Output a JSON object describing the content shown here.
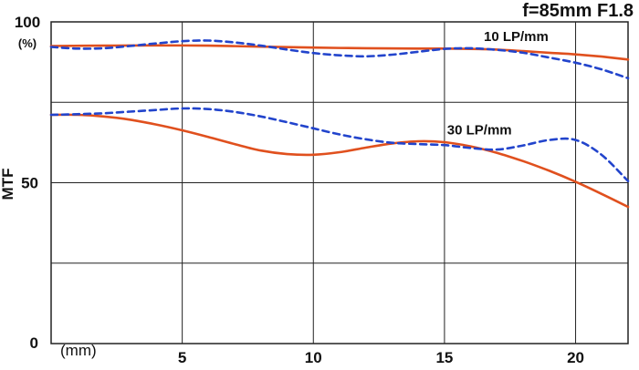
{
  "chart_data": {
    "type": "line",
    "title": "f=85mm F1.8",
    "xlabel": "(mm)",
    "ylabel": "MTF",
    "y_unit": "(%)",
    "xlim": [
      0,
      22
    ],
    "ylim": [
      0,
      100
    ],
    "x_ticks": [
      5,
      10,
      15,
      20
    ],
    "y_ticks": [
      0,
      50,
      100
    ],
    "grid": true,
    "colors": {
      "sagittal": "#e0501e",
      "meridional": "#2244cc"
    },
    "annotations": [
      {
        "text": "10 LP/mm",
        "x": 16.5,
        "y": 94
      },
      {
        "text": "30 LP/mm",
        "x": 15.1,
        "y": 65
      }
    ],
    "series": [
      {
        "group": "10 LP/mm",
        "style": "solid",
        "color": "#e0501e",
        "points": [
          [
            0,
            92.5
          ],
          [
            2,
            92.6
          ],
          [
            4,
            92.7
          ],
          [
            6,
            92.6
          ],
          [
            8,
            92.3
          ],
          [
            10,
            92
          ],
          [
            12,
            91.8
          ],
          [
            14,
            91.7
          ],
          [
            15,
            91.7
          ],
          [
            16,
            91.6
          ],
          [
            17,
            91.4
          ],
          [
            18,
            90.9
          ],
          [
            19,
            90.4
          ],
          [
            20,
            89.9
          ],
          [
            21,
            89.2
          ],
          [
            22,
            88.3
          ]
        ]
      },
      {
        "group": "10 LP/mm",
        "style": "dashed",
        "color": "#2244cc",
        "points": [
          [
            0,
            92.2
          ],
          [
            1,
            91.7
          ],
          [
            2,
            91.8
          ],
          [
            3,
            92.5
          ],
          [
            4,
            93.3
          ],
          [
            5,
            94
          ],
          [
            6,
            94.2
          ],
          [
            7,
            93.6
          ],
          [
            8,
            92.6
          ],
          [
            9,
            91.4
          ],
          [
            10,
            90.3
          ],
          [
            11,
            89.6
          ],
          [
            12,
            89.3
          ],
          [
            13,
            89.8
          ],
          [
            14,
            90.7
          ],
          [
            15,
            91.6
          ],
          [
            16,
            91.8
          ],
          [
            17,
            91.3
          ],
          [
            18,
            90.4
          ],
          [
            19,
            88.9
          ],
          [
            20,
            87.3
          ],
          [
            21,
            85.2
          ],
          [
            22,
            82.5
          ]
        ]
      },
      {
        "group": "30 LP/mm",
        "style": "solid",
        "color": "#e0501e",
        "points": [
          [
            0,
            71.1
          ],
          [
            1,
            71.1
          ],
          [
            2,
            70.6
          ],
          [
            3,
            69.6
          ],
          [
            4,
            68.1
          ],
          [
            5,
            66.3
          ],
          [
            6,
            64.2
          ],
          [
            7,
            62
          ],
          [
            8,
            60
          ],
          [
            9,
            58.9
          ],
          [
            10,
            58.7
          ],
          [
            11,
            59.5
          ],
          [
            12,
            60.9
          ],
          [
            13,
            62.2
          ],
          [
            14,
            62.9
          ],
          [
            15,
            62.6
          ],
          [
            16,
            61.3
          ],
          [
            17,
            59.3
          ],
          [
            18,
            56.7
          ],
          [
            19,
            53.7
          ],
          [
            20,
            50.3
          ],
          [
            21,
            46.5
          ],
          [
            22,
            42.5
          ]
        ]
      },
      {
        "group": "30 LP/mm",
        "style": "dashed",
        "color": "#2244cc",
        "points": [
          [
            0,
            71.1
          ],
          [
            1,
            71.3
          ],
          [
            2,
            71.6
          ],
          [
            3,
            72.1
          ],
          [
            4,
            72.6
          ],
          [
            5,
            73.1
          ],
          [
            6,
            72.9
          ],
          [
            7,
            72
          ],
          [
            8,
            70.6
          ],
          [
            9,
            68.8
          ],
          [
            10,
            66.9
          ],
          [
            11,
            65
          ],
          [
            12,
            63.5
          ],
          [
            13,
            62.4
          ],
          [
            14,
            62
          ],
          [
            15,
            61.7
          ],
          [
            16,
            60.8
          ],
          [
            17,
            60.3
          ],
          [
            18,
            61.6
          ],
          [
            19,
            63.3
          ],
          [
            20,
            63.3
          ],
          [
            21,
            58.6
          ],
          [
            22,
            50.5
          ]
        ]
      }
    ]
  }
}
